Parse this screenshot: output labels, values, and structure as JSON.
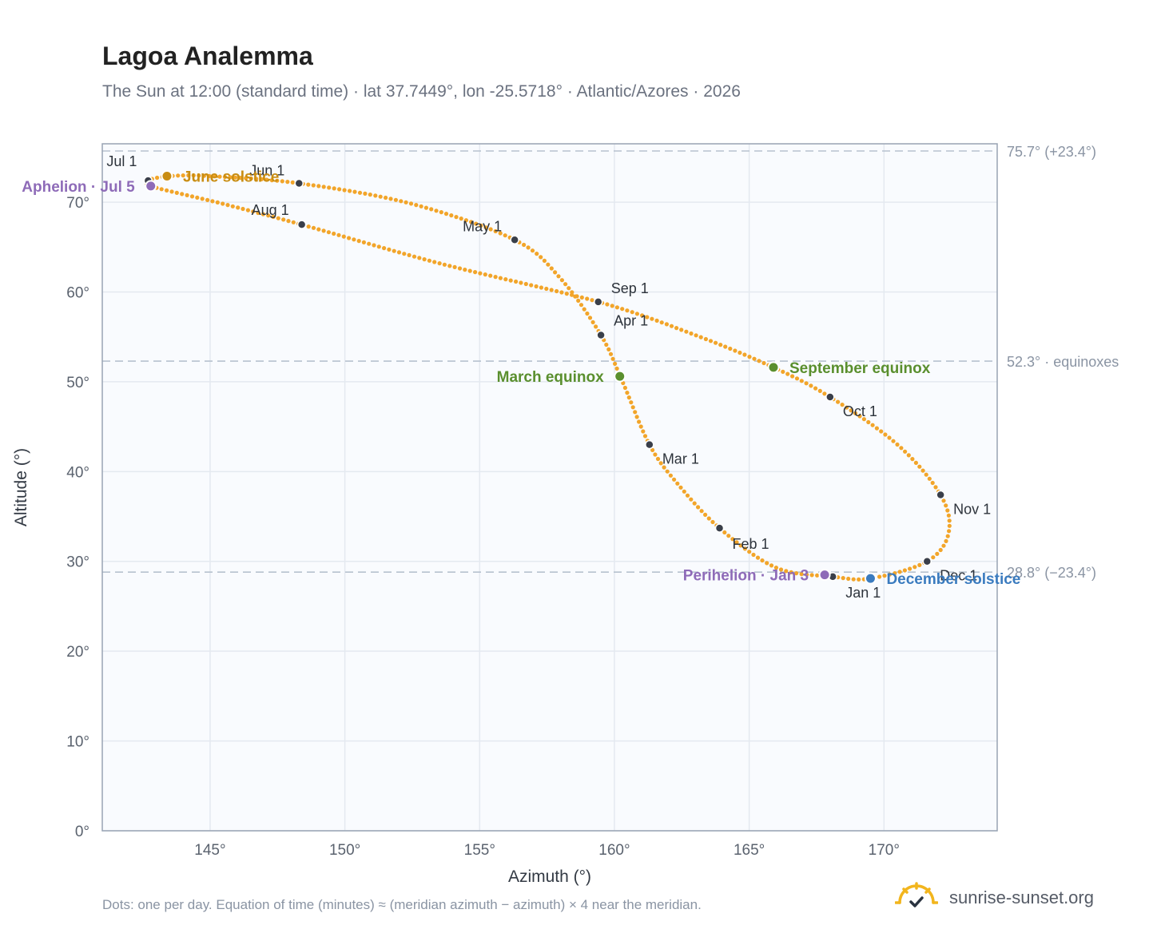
{
  "header": {
    "title": "Lagoa Analemma",
    "subtitle": "The Sun at 12:00 (standard time) · lat 37.7449°, lon -25.5718° · Atlantic/Azores · 2026"
  },
  "footer": {
    "note": "Dots: one per day. Equation of time (minutes) ≈ (meridian azimuth − azimuth) × 4 near the meridian.",
    "brand": "sunrise-sunset.org",
    "brand_icon": "sun-check-icon"
  },
  "colors": {
    "curve": "#f2a52a",
    "month_marker": "#3a3f4a",
    "equinox": "#5a8f2e",
    "june_solstice": "#c98d12",
    "december_solstice": "#3a7bbf",
    "aphelion_perihelion": "#8e6bb8",
    "reference_line": "#b7c2cf",
    "plot_background": "#f9fbfe",
    "axis_frame": "#98a3b3"
  },
  "chart_data": {
    "type": "scatter",
    "title": "Lagoa Analemma",
    "xlabel": "Azimuth (°)",
    "ylabel": "Altitude (°)",
    "xlim": [
      141,
      174.2
    ],
    "ylim": [
      0,
      76.5
    ],
    "x_ticks": [
      145,
      150,
      155,
      160,
      165,
      170
    ],
    "x_tick_labels": [
      "145°",
      "150°",
      "155°",
      "160°",
      "165°",
      "170°"
    ],
    "y_ticks": [
      0,
      10,
      20,
      30,
      40,
      50,
      60,
      70
    ],
    "y_tick_labels": [
      "0°",
      "10°",
      "20°",
      "30°",
      "40°",
      "50°",
      "60°",
      "70°"
    ],
    "grid": true,
    "reference_lines": [
      {
        "y": 75.7,
        "label": "75.7° (+23.4°)"
      },
      {
        "y": 52.3,
        "label": "52.3° · equinoxes"
      },
      {
        "y": 28.8,
        "label": "28.8° (−23.4°)"
      }
    ],
    "path_control_points": [
      {
        "az": 168.1,
        "alt": 28.3
      },
      {
        "az": 166.0,
        "alt": 29.3
      },
      {
        "az": 163.9,
        "alt": 33.7
      },
      {
        "az": 162.3,
        "alt": 38.8
      },
      {
        "az": 161.3,
        "alt": 43.0
      },
      {
        "az": 160.3,
        "alt": 50.0
      },
      {
        "az": 159.5,
        "alt": 55.2
      },
      {
        "az": 158.0,
        "alt": 61.5
      },
      {
        "az": 156.3,
        "alt": 65.8
      },
      {
        "az": 152.5,
        "alt": 69.8
      },
      {
        "az": 148.3,
        "alt": 72.1
      },
      {
        "az": 145.0,
        "alt": 72.9
      },
      {
        "az": 143.5,
        "alt": 72.9
      },
      {
        "az": 142.7,
        "alt": 72.4
      },
      {
        "az": 142.9,
        "alt": 71.7
      },
      {
        "az": 145.5,
        "alt": 69.8
      },
      {
        "az": 148.4,
        "alt": 67.5
      },
      {
        "az": 153.5,
        "alt": 63.2
      },
      {
        "az": 159.4,
        "alt": 58.9
      },
      {
        "az": 163.0,
        "alt": 55.2
      },
      {
        "az": 165.9,
        "alt": 51.6
      },
      {
        "az": 168.0,
        "alt": 48.3
      },
      {
        "az": 170.5,
        "alt": 43.0
      },
      {
        "az": 172.1,
        "alt": 37.4
      },
      {
        "az": 172.4,
        "alt": 33.2
      },
      {
        "az": 171.6,
        "alt": 30.0
      },
      {
        "az": 169.5,
        "alt": 28.1
      },
      {
        "az": 168.1,
        "alt": 28.3
      }
    ],
    "month_markers": [
      {
        "label": "Jan 1",
        "az": 168.1,
        "alt": 28.3
      },
      {
        "label": "Feb 1",
        "az": 163.9,
        "alt": 33.7
      },
      {
        "label": "Mar 1",
        "az": 161.3,
        "alt": 43.0
      },
      {
        "label": "Apr 1",
        "az": 159.5,
        "alt": 55.2
      },
      {
        "label": "May 1",
        "az": 156.3,
        "alt": 65.8
      },
      {
        "label": "Jun 1",
        "az": 148.3,
        "alt": 72.1
      },
      {
        "label": "Jul 1",
        "az": 142.7,
        "alt": 72.4
      },
      {
        "label": "Aug 1",
        "az": 148.4,
        "alt": 67.5
      },
      {
        "label": "Sep 1",
        "az": 159.4,
        "alt": 58.9
      },
      {
        "label": "Oct 1",
        "az": 168.0,
        "alt": 48.3
      },
      {
        "label": "Nov 1",
        "az": 172.1,
        "alt": 37.4
      },
      {
        "label": "Dec 1",
        "az": 171.6,
        "alt": 30.0
      }
    ],
    "events": [
      {
        "label": "March equinox",
        "az": 160.2,
        "alt": 50.6,
        "color_key": "equinox",
        "label_side": "left"
      },
      {
        "label": "September equinox",
        "az": 165.9,
        "alt": 51.6,
        "color_key": "equinox",
        "label_side": "right"
      },
      {
        "label": "June solstice",
        "az": 143.4,
        "alt": 72.9,
        "color_key": "june_solstice",
        "label_side": "right"
      },
      {
        "label": "December solstice",
        "az": 169.5,
        "alt": 28.1,
        "color_key": "december_solstice",
        "label_side": "right"
      },
      {
        "label": "Aphelion · Jul 5",
        "az": 142.8,
        "alt": 71.8,
        "color_key": "aphelion_perihelion",
        "label_side": "left"
      },
      {
        "label": "Perihelion · Jan 3",
        "az": 167.8,
        "alt": 28.5,
        "color_key": "aphelion_perihelion",
        "label_side": "left"
      }
    ]
  }
}
